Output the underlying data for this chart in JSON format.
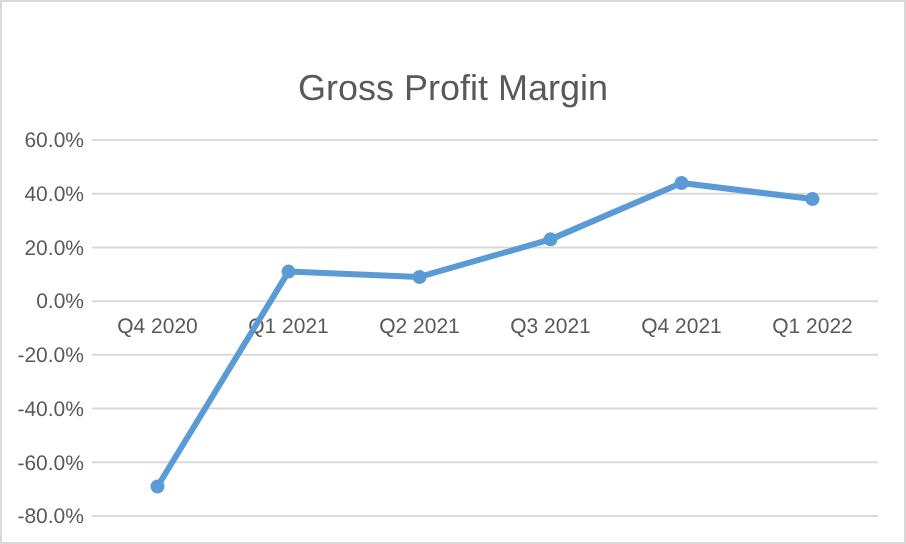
{
  "chart_data": {
    "type": "line",
    "title": "Gross Profit Margin",
    "categories": [
      "Q4 2020",
      "Q1 2021",
      "Q2 2021",
      "Q3 2021",
      "Q4 2021",
      "Q1 2022"
    ],
    "series": [
      {
        "color": "#5b9bd5",
        "values": [
          -69,
          11,
          9,
          23,
          44,
          38
        ]
      }
    ],
    "ylim": [
      -80,
      60
    ],
    "yticks": [
      {
        "value": -80,
        "label": "-80.0%"
      },
      {
        "value": -60,
        "label": "-60.0%"
      },
      {
        "value": -40,
        "label": "-40.0%"
      },
      {
        "value": -20,
        "label": "-20.0%"
      },
      {
        "value": 0,
        "label": "0.0%"
      },
      {
        "value": 20,
        "label": "20.0%"
      },
      {
        "value": 40,
        "label": "40.0%"
      },
      {
        "value": 60,
        "label": "60.0%"
      }
    ],
    "grid": "y",
    "marker": "circle",
    "line_style": "solid"
  }
}
